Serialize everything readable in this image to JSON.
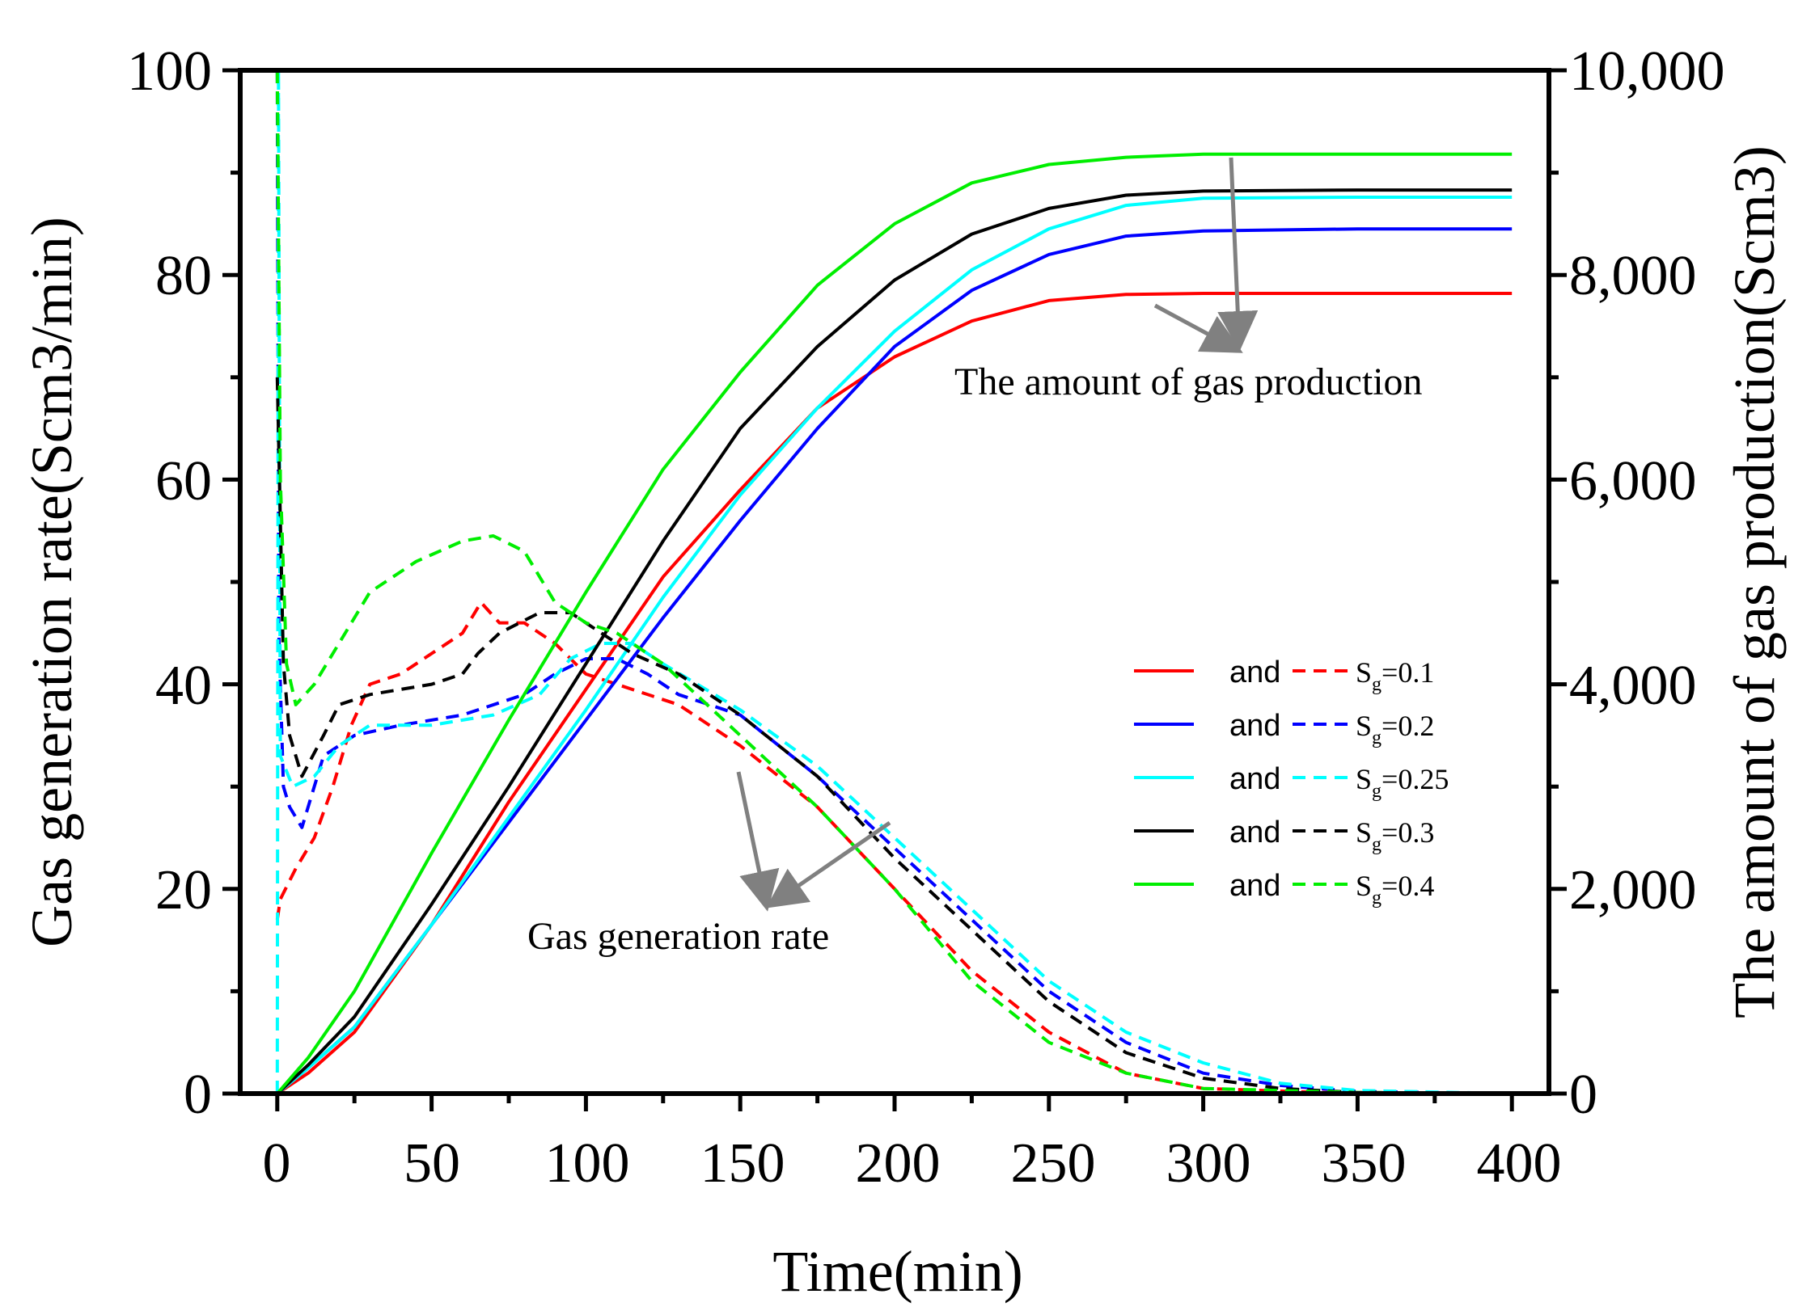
{
  "chart_data": {
    "type": "line",
    "xlabel": "Time(min)",
    "ylabel_left": "Gas generation rate(Scm3/min)",
    "ylabel_right": "The amount of gas production(Scm3)",
    "xlim": [
      -12,
      412
    ],
    "ylim_left": [
      0,
      100
    ],
    "ylim_right": [
      0,
      10000
    ],
    "x_ticks": [
      "0",
      "50",
      "100",
      "150",
      "200",
      "250",
      "300",
      "350",
      "400"
    ],
    "y_ticks_left": [
      "0",
      "20",
      "40",
      "60",
      "80",
      "100"
    ],
    "y_ticks_right": [
      "0",
      "2,000",
      "4,000",
      "6,000",
      "8,000",
      "10,000"
    ],
    "legend_position": "center-right",
    "annotations": {
      "production": "The amount of gas production",
      "rate": "Gas generation rate"
    },
    "series": [
      {
        "name": "Sg=0.1",
        "sg_value": "0.1",
        "color": "#ff0000",
        "legend_word": "and",
        "cumulative": [
          [
            0,
            0
          ],
          [
            10,
            200
          ],
          [
            25,
            600
          ],
          [
            50,
            1650
          ],
          [
            75,
            2850
          ],
          [
            100,
            3950
          ],
          [
            125,
            5050
          ],
          [
            150,
            5900
          ],
          [
            175,
            6700
          ],
          [
            200,
            7200
          ],
          [
            225,
            7550
          ],
          [
            250,
            7750
          ],
          [
            275,
            7810
          ],
          [
            300,
            7820
          ],
          [
            350,
            7820
          ],
          [
            400,
            7820
          ]
        ],
        "rate": [
          [
            0,
            17
          ],
          [
            1,
            19
          ],
          [
            6,
            22
          ],
          [
            12,
            25
          ],
          [
            18,
            30
          ],
          [
            24,
            36
          ],
          [
            30,
            40
          ],
          [
            40,
            41
          ],
          [
            50,
            43
          ],
          [
            60,
            45
          ],
          [
            66,
            48
          ],
          [
            72,
            46
          ],
          [
            80,
            46
          ],
          [
            90,
            44
          ],
          [
            100,
            41
          ],
          [
            110,
            40
          ],
          [
            130,
            38
          ],
          [
            150,
            34
          ],
          [
            175,
            28
          ],
          [
            200,
            20
          ],
          [
            225,
            12
          ],
          [
            250,
            6
          ],
          [
            275,
            2
          ],
          [
            300,
            0.5
          ],
          [
            350,
            0
          ],
          [
            400,
            0
          ]
        ]
      },
      {
        "name": "Sg=0.2",
        "sg_value": "0.2",
        "color": "#0000ff",
        "legend_word": "and",
        "cumulative": [
          [
            0,
            0
          ],
          [
            10,
            250
          ],
          [
            25,
            650
          ],
          [
            50,
            1650
          ],
          [
            75,
            2650
          ],
          [
            100,
            3650
          ],
          [
            125,
            4650
          ],
          [
            150,
            5600
          ],
          [
            175,
            6500
          ],
          [
            200,
            7300
          ],
          [
            225,
            7850
          ],
          [
            250,
            8200
          ],
          [
            275,
            8380
          ],
          [
            300,
            8430
          ],
          [
            350,
            8450
          ],
          [
            400,
            8450
          ]
        ],
        "rate": [
          [
            0,
            100
          ],
          [
            0.5,
            45
          ],
          [
            2,
            30
          ],
          [
            4,
            28
          ],
          [
            8,
            26
          ],
          [
            15,
            33
          ],
          [
            25,
            35
          ],
          [
            40,
            36
          ],
          [
            60,
            37
          ],
          [
            80,
            39
          ],
          [
            90,
            41
          ],
          [
            100,
            42.5
          ],
          [
            110,
            42.5
          ],
          [
            120,
            41
          ],
          [
            130,
            39
          ],
          [
            150,
            37
          ],
          [
            175,
            31
          ],
          [
            200,
            24
          ],
          [
            225,
            17
          ],
          [
            250,
            10
          ],
          [
            275,
            5
          ],
          [
            300,
            2
          ],
          [
            325,
            0.8
          ],
          [
            350,
            0.2
          ],
          [
            400,
            0
          ]
        ]
      },
      {
        "name": "Sg=0.25",
        "sg_value": "0.25",
        "color": "#00ffff",
        "legend_word": "and",
        "cumulative": [
          [
            0,
            0
          ],
          [
            10,
            250
          ],
          [
            25,
            650
          ],
          [
            50,
            1650
          ],
          [
            75,
            2700
          ],
          [
            100,
            3750
          ],
          [
            125,
            4850
          ],
          [
            150,
            5850
          ],
          [
            175,
            6700
          ],
          [
            200,
            7450
          ],
          [
            225,
            8050
          ],
          [
            250,
            8450
          ],
          [
            275,
            8680
          ],
          [
            300,
            8750
          ],
          [
            350,
            8760
          ],
          [
            400,
            8760
          ]
        ],
        "rate": [
          [
            0,
            0
          ],
          [
            0.4,
            100
          ],
          [
            1,
            33
          ],
          [
            5,
            30
          ],
          [
            12,
            31
          ],
          [
            20,
            34
          ],
          [
            30,
            36
          ],
          [
            50,
            36
          ],
          [
            70,
            37
          ],
          [
            85,
            39
          ],
          [
            95,
            42.5
          ],
          [
            105,
            44
          ],
          [
            115,
            44
          ],
          [
            125,
            42
          ],
          [
            150,
            37.5
          ],
          [
            175,
            32
          ],
          [
            200,
            25
          ],
          [
            225,
            18
          ],
          [
            250,
            11
          ],
          [
            275,
            6
          ],
          [
            300,
            3
          ],
          [
            325,
            1
          ],
          [
            350,
            0.3
          ],
          [
            400,
            0
          ]
        ]
      },
      {
        "name": "Sg=0.3",
        "sg_value": "0.3",
        "color": "#000000",
        "legend_word": "and",
        "cumulative": [
          [
            0,
            0
          ],
          [
            10,
            280
          ],
          [
            25,
            750
          ],
          [
            50,
            1850
          ],
          [
            75,
            3000
          ],
          [
            100,
            4200
          ],
          [
            125,
            5400
          ],
          [
            150,
            6500
          ],
          [
            175,
            7300
          ],
          [
            200,
            7950
          ],
          [
            225,
            8400
          ],
          [
            250,
            8650
          ],
          [
            275,
            8780
          ],
          [
            300,
            8820
          ],
          [
            350,
            8830
          ],
          [
            400,
            8830
          ]
        ],
        "rate": [
          [
            0,
            70
          ],
          [
            2,
            42
          ],
          [
            4,
            35
          ],
          [
            8,
            31
          ],
          [
            15,
            35
          ],
          [
            20,
            38
          ],
          [
            30,
            39
          ],
          [
            50,
            40
          ],
          [
            60,
            41
          ],
          [
            65,
            43
          ],
          [
            72,
            45
          ],
          [
            85,
            47
          ],
          [
            95,
            47
          ],
          [
            105,
            45
          ],
          [
            115,
            43
          ],
          [
            130,
            41
          ],
          [
            150,
            37
          ],
          [
            175,
            31
          ],
          [
            200,
            23
          ],
          [
            225,
            16
          ],
          [
            250,
            9
          ],
          [
            275,
            4
          ],
          [
            300,
            1.5
          ],
          [
            325,
            0.5
          ],
          [
            350,
            0.1
          ],
          [
            400,
            0
          ]
        ]
      },
      {
        "name": "Sg=0.4",
        "sg_value": "0.4",
        "color": "#00ee00",
        "legend_word": "and",
        "cumulative": [
          [
            0,
            0
          ],
          [
            10,
            350
          ],
          [
            25,
            1000
          ],
          [
            50,
            2350
          ],
          [
            75,
            3650
          ],
          [
            100,
            4900
          ],
          [
            125,
            6100
          ],
          [
            150,
            7050
          ],
          [
            175,
            7900
          ],
          [
            200,
            8500
          ],
          [
            225,
            8900
          ],
          [
            250,
            9080
          ],
          [
            275,
            9150
          ],
          [
            300,
            9180
          ],
          [
            350,
            9180
          ],
          [
            400,
            9180
          ]
        ],
        "rate": [
          [
            0,
            100
          ],
          [
            1,
            60
          ],
          [
            3,
            42
          ],
          [
            6,
            38
          ],
          [
            12,
            40
          ],
          [
            20,
            44
          ],
          [
            30,
            49
          ],
          [
            45,
            52
          ],
          [
            60,
            54
          ],
          [
            70,
            54.5
          ],
          [
            80,
            53
          ],
          [
            90,
            48
          ],
          [
            100,
            46
          ],
          [
            110,
            45
          ],
          [
            125,
            42
          ],
          [
            150,
            35
          ],
          [
            175,
            28
          ],
          [
            200,
            20
          ],
          [
            225,
            11
          ],
          [
            250,
            5
          ],
          [
            275,
            2
          ],
          [
            300,
            0.5
          ],
          [
            350,
            0.1
          ],
          [
            400,
            0
          ]
        ]
      }
    ]
  }
}
